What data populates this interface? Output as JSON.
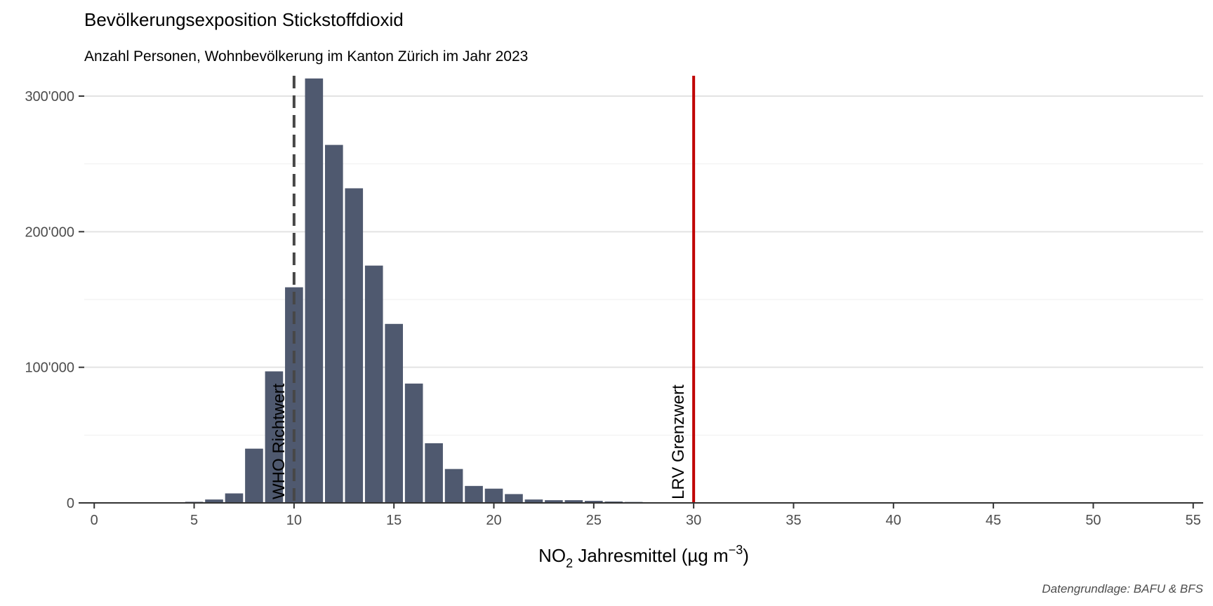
{
  "chart_data": {
    "type": "bar",
    "title": "Bevölkerungsexposition Stickstoffdioxid",
    "subtitle": "Anzahl Personen, Wohnbevölkerung im Kanton Zürich im Jahr 2023",
    "xlabel": {
      "main": "NO",
      "sub": "2",
      "mid": " Jahresmittel (µg m",
      "sup": "−3",
      "end": ")"
    },
    "ylabel": "",
    "caption": "Datengrundlage: BAFU & BFS",
    "xlim": [
      -0.5,
      55.5
    ],
    "ylim": [
      0,
      315000
    ],
    "x_ticks": [
      0,
      5,
      10,
      15,
      20,
      25,
      30,
      35,
      40,
      45,
      50,
      55
    ],
    "x_tick_labels": [
      "0",
      "5",
      "10",
      "15",
      "20",
      "25",
      "30",
      "35",
      "40",
      "45",
      "50",
      "55"
    ],
    "y_ticks": [
      0,
      100000,
      200000,
      300000
    ],
    "y_tick_labels": [
      "0",
      "100'000",
      "200'000",
      "300'000"
    ],
    "grid": "horizontal",
    "bar_color": "#4f596f",
    "series": [
      {
        "x": [
          4,
          5,
          6,
          7,
          8,
          9,
          10,
          11,
          12,
          13,
          14,
          15,
          16,
          17,
          18,
          19,
          20,
          21,
          22,
          23,
          24,
          25,
          26,
          27,
          28,
          29
        ],
        "values": [
          300,
          800,
          2500,
          7000,
          40000,
          97000,
          159000,
          313000,
          264000,
          232000,
          175000,
          132000,
          88000,
          44000,
          25000,
          12500,
          10500,
          6500,
          2500,
          2000,
          2000,
          1500,
          1000,
          700,
          500,
          300
        ]
      }
    ],
    "reference_lines": [
      {
        "x": 10,
        "label": "WHO Richtwert",
        "style": "dashed",
        "color": "#474747"
      },
      {
        "x": 30,
        "label": "LRV Grenzwert",
        "style": "solid",
        "color": "#c00000"
      }
    ]
  }
}
